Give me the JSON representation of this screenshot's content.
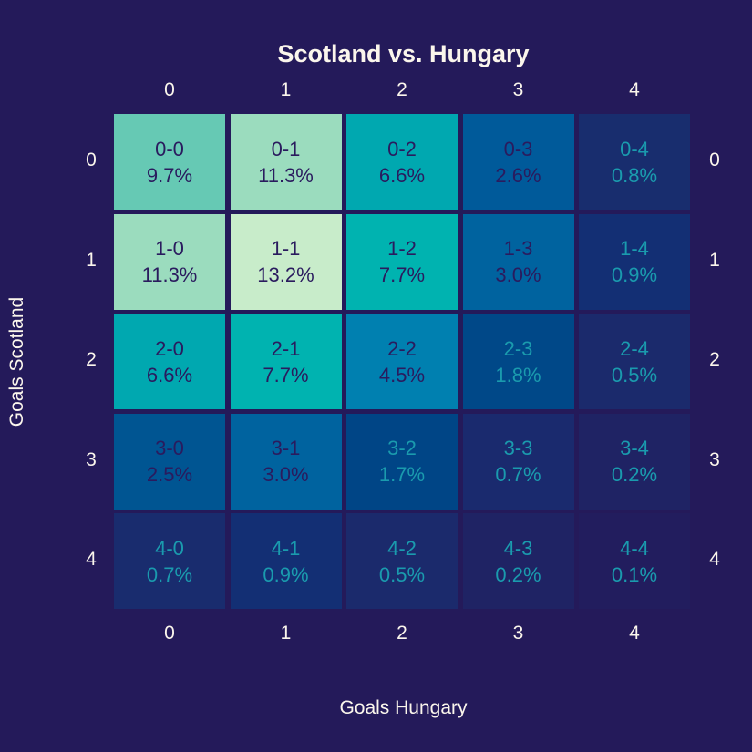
{
  "chart_data": {
    "type": "heatmap",
    "title": "Scotland vs. Hungary",
    "xlabel": "Goals Hungary",
    "ylabel": "Goals Scotland",
    "x_ticks": [
      "0",
      "1",
      "2",
      "3",
      "4"
    ],
    "y_ticks": [
      "0",
      "1",
      "2",
      "3",
      "4"
    ],
    "cells": [
      [
        {
          "score": "0-0",
          "pct": "9.7%",
          "value": 9.7,
          "color": "#66c9b4",
          "text_color": "#2a1b5e"
        },
        {
          "score": "0-1",
          "pct": "11.3%",
          "value": 11.3,
          "color": "#9bdcbe",
          "text_color": "#2a1b5e"
        },
        {
          "score": "0-2",
          "pct": "6.6%",
          "value": 6.6,
          "color": "#00a8b0",
          "text_color": "#2a1b5e"
        },
        {
          "score": "0-3",
          "pct": "2.6%",
          "value": 2.6,
          "color": "#005a9a",
          "text_color": "#2a1b5e"
        },
        {
          "score": "0-4",
          "pct": "0.8%",
          "value": 0.8,
          "color": "#182d6e",
          "text_color": "#1a9bae"
        }
      ],
      [
        {
          "score": "1-0",
          "pct": "11.3%",
          "value": 11.3,
          "color": "#9bdcbe",
          "text_color": "#2a1b5e"
        },
        {
          "score": "1-1",
          "pct": "13.2%",
          "value": 13.2,
          "color": "#c8ecca",
          "text_color": "#2a1b5e"
        },
        {
          "score": "1-2",
          "pct": "7.7%",
          "value": 7.7,
          "color": "#00b3b0",
          "text_color": "#2a1b5e"
        },
        {
          "score": "1-3",
          "pct": "3.0%",
          "value": 3.0,
          "color": "#00639f",
          "text_color": "#2a1b5e"
        },
        {
          "score": "1-4",
          "pct": "0.9%",
          "value": 0.9,
          "color": "#132f74",
          "text_color": "#1a9bae"
        }
      ],
      [
        {
          "score": "2-0",
          "pct": "6.6%",
          "value": 6.6,
          "color": "#00a8b0",
          "text_color": "#2a1b5e"
        },
        {
          "score": "2-1",
          "pct": "7.7%",
          "value": 7.7,
          "color": "#00b3b0",
          "text_color": "#2a1b5e"
        },
        {
          "score": "2-2",
          "pct": "4.5%",
          "value": 4.5,
          "color": "#0080b0",
          "text_color": "#2a1b5e"
        },
        {
          "score": "2-3",
          "pct": "1.8%",
          "value": 1.8,
          "color": "#004888",
          "text_color": "#1a9bae"
        },
        {
          "score": "2-4",
          "pct": "0.5%",
          "value": 0.5,
          "color": "#1b2a6c",
          "text_color": "#1a9bae"
        }
      ],
      [
        {
          "score": "3-0",
          "pct": "2.5%",
          "value": 2.5,
          "color": "#005592",
          "text_color": "#2a1b5e"
        },
        {
          "score": "3-1",
          "pct": "3.0%",
          "value": 3.0,
          "color": "#00639f",
          "text_color": "#2a1b5e"
        },
        {
          "score": "3-2",
          "pct": "1.7%",
          "value": 1.7,
          "color": "#004586",
          "text_color": "#1a9bae"
        },
        {
          "score": "3-3",
          "pct": "0.7%",
          "value": 0.7,
          "color": "#1a2a6e",
          "text_color": "#1a9bae"
        },
        {
          "score": "3-4",
          "pct": "0.2%",
          "value": 0.2,
          "color": "#1f2364",
          "text_color": "#1a9bae"
        }
      ],
      [
        {
          "score": "4-0",
          "pct": "0.7%",
          "value": 0.7,
          "color": "#192c6e",
          "text_color": "#1a9bae"
        },
        {
          "score": "4-1",
          "pct": "0.9%",
          "value": 0.9,
          "color": "#132f74",
          "text_color": "#1a9bae"
        },
        {
          "score": "4-2",
          "pct": "0.5%",
          "value": 0.5,
          "color": "#1b2a6c",
          "text_color": "#1a9bae"
        },
        {
          "score": "4-3",
          "pct": "0.2%",
          "value": 0.2,
          "color": "#1f2364",
          "text_color": "#1a9bae"
        },
        {
          "score": "4-4",
          "pct": "0.1%",
          "value": 0.1,
          "color": "#221d5e",
          "text_color": "#1a9bae"
        }
      ]
    ]
  }
}
